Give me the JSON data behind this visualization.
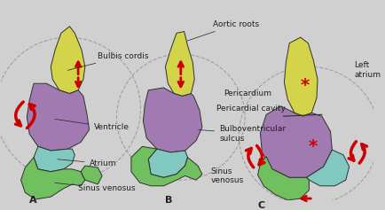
{
  "background_color": "#d0d0d0",
  "fig_width": 4.35,
  "fig_height": 2.37,
  "labels": {
    "aortic_roots": "Aortic roots",
    "bulbis_cordis": "Bulbis cordis",
    "ventricle": "Ventricle",
    "atrium": "Atrium",
    "sinus_venosus": "Sinus venosus",
    "pericardium": "Pericardium",
    "pericardial_cavity": "Pericardial cavity",
    "bulboventricular_sulcus": "Bulboventricular\nsulcus",
    "sinus_venosus_b": "Sinus\nvenosus",
    "left_atrium": "Left\natrium",
    "A": "A",
    "B": "B",
    "C": "C"
  },
  "colors": {
    "yellow": "#d4d44a",
    "purple": "#a07ab0",
    "teal": "#80c8c0",
    "green": "#70c060",
    "outline": "#303030",
    "red_arrow": "#cc0000",
    "background": "#d0d0d0",
    "text": "#202020",
    "star_red": "#cc0000"
  }
}
